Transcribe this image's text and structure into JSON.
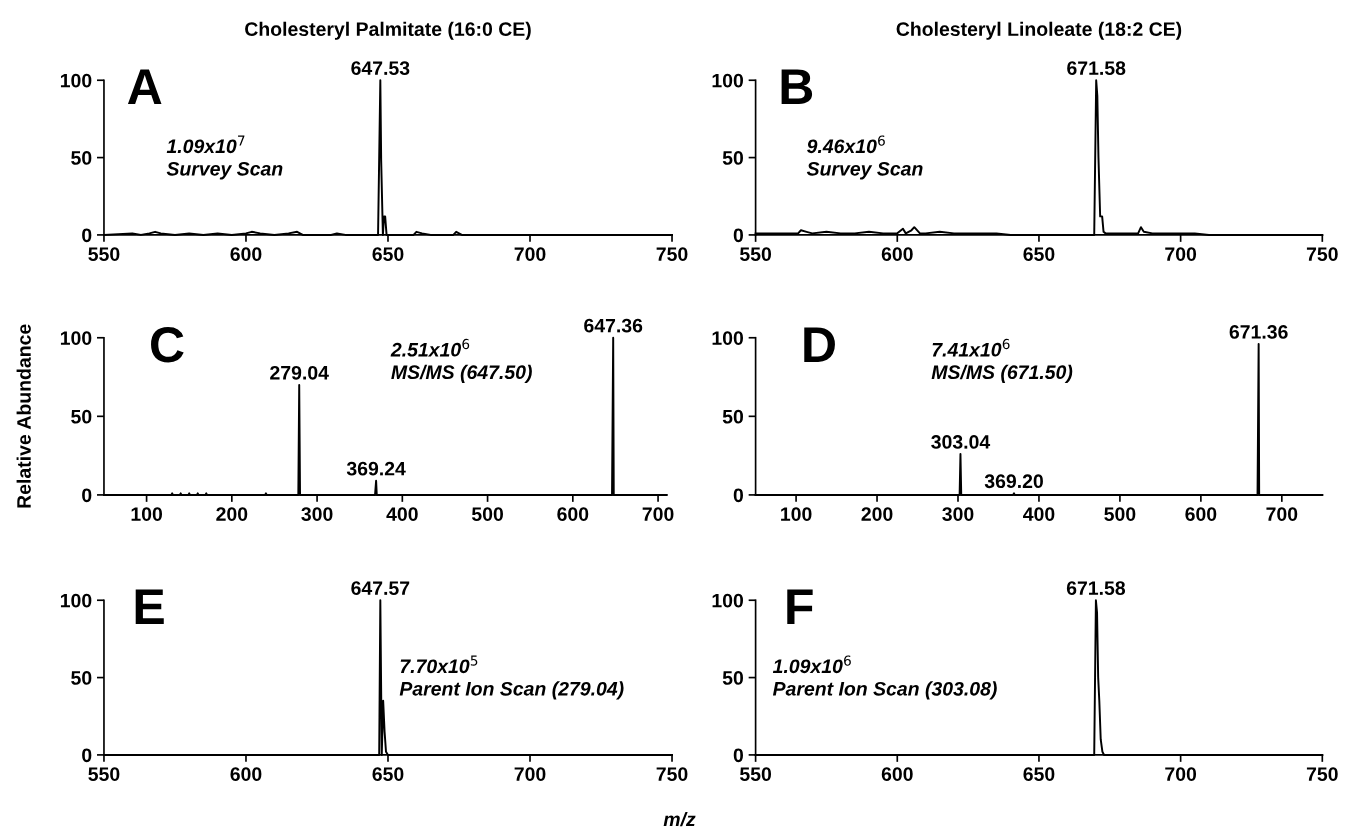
{
  "chart_data": [
    {
      "type": "line",
      "title": "Cholesteryl Palmitate (16:0 CE)",
      "xlim": [
        550,
        750
      ],
      "xticks": [
        550,
        600,
        650,
        700,
        750
      ],
      "ylim": [
        0,
        100
      ],
      "yticks": [
        0,
        50,
        100
      ],
      "legend": false,
      "grid": false,
      "marker": "none",
      "series": [
        {
          "color": "#000000",
          "x": [
            550,
            560,
            563,
            566,
            568,
            570,
            575,
            580,
            585,
            590,
            595,
            600,
            602,
            605,
            610,
            615,
            618,
            620,
            630,
            632,
            635,
            640,
            645,
            646.5,
            647.3,
            647.6,
            648.2,
            648.6,
            649.0,
            649.5,
            650.2,
            651,
            655,
            659,
            660,
            662,
            665,
            670,
            673,
            674,
            676,
            680,
            700,
            750
          ],
          "values": [
            0,
            1,
            0,
            1,
            2,
            1,
            0,
            1,
            0,
            1,
            0,
            1,
            2,
            1,
            0,
            1,
            2,
            0,
            0,
            1,
            0,
            0,
            0,
            0,
            100,
            48,
            0,
            12,
            12,
            0,
            0,
            0,
            0,
            0,
            2,
            1,
            0,
            0,
            0,
            2,
            0,
            0,
            0,
            0
          ]
        }
      ],
      "annotations": [
        "A",
        "1.09x10$^{7}$\nSurvey Scan",
        {
          "text": "647.53",
          "x": 647.3,
          "y": 100
        }
      ]
    },
    {
      "type": "line",
      "title": "Cholesteryl Linoleate (18:2 CE)",
      "xlim": [
        550,
        750
      ],
      "xticks": [
        550,
        600,
        650,
        700,
        750
      ],
      "ylim": [
        0,
        100
      ],
      "yticks": [
        0,
        50,
        100
      ],
      "legend": false,
      "grid": false,
      "marker": "none",
      "series": [
        {
          "color": "#000000",
          "x": [
            550,
            555,
            560,
            565,
            566,
            568,
            570,
            575,
            580,
            585,
            590,
            595,
            600,
            602,
            603,
            605,
            606,
            608,
            610,
            615,
            620,
            625,
            630,
            635,
            640,
            650,
            660,
            665,
            668,
            669.5,
            670.2,
            670.6,
            671.0,
            671.6,
            672.3,
            672.8,
            673.5,
            675,
            680,
            685,
            686,
            687,
            690,
            700,
            705,
            710,
            750
          ],
          "values": [
            1,
            1,
            1,
            1,
            3,
            2,
            1,
            2,
            1,
            1,
            2,
            1,
            1,
            4,
            1,
            3,
            5,
            1,
            1,
            2,
            1,
            1,
            1,
            1,
            0,
            0,
            0,
            0,
            0,
            0,
            100,
            90,
            50,
            12,
            12,
            2,
            1,
            1,
            1,
            1,
            5,
            2,
            1,
            1,
            1,
            0,
            0
          ]
        }
      ],
      "annotations": [
        "B",
        "9.46x10$^{6}$\nSurvey Scan",
        {
          "text": "671.58",
          "x": 670.2,
          "y": 100
        }
      ]
    },
    {
      "type": "line",
      "ylabel": "Relative Abundance",
      "xlim": [
        50,
        710
      ],
      "xticks": [
        100,
        200,
        300,
        400,
        500,
        600,
        700
      ],
      "ylim": [
        0,
        100
      ],
      "yticks": [
        0,
        50,
        100
      ],
      "legend": false,
      "grid": false,
      "marker": "none",
      "series": [
        {
          "color": "#000000",
          "x": [
            50,
            129,
            130,
            131,
            139,
            140,
            141,
            149,
            150,
            151,
            159,
            160,
            161,
            169,
            170,
            171,
            239,
            240,
            241,
            278,
            279.04,
            280,
            368,
            369.24,
            370,
            646,
            647.36,
            648,
            710
          ],
          "values": [
            0,
            0,
            1,
            0,
            0,
            1,
            0,
            0,
            1,
            0,
            0,
            1,
            0,
            0,
            1,
            0,
            0,
            1,
            0,
            0,
            70,
            0,
            0,
            9,
            0,
            0,
            100,
            0,
            0
          ]
        }
      ],
      "annotations": [
        "C",
        "2.51x10$^{6}$\nMS/MS (647.50)",
        {
          "text": "279.04",
          "x": 279.04,
          "y": 70
        },
        {
          "text": "369.24",
          "x": 369.24,
          "y": 9
        },
        {
          "text": "647.36",
          "x": 647.36,
          "y": 100
        }
      ]
    },
    {
      "type": "line",
      "xlim": [
        50,
        750
      ],
      "xticks": [
        100,
        200,
        300,
        400,
        500,
        600,
        700
      ],
      "ylim": [
        0,
        100
      ],
      "yticks": [
        0,
        50,
        100
      ],
      "legend": false,
      "grid": false,
      "marker": "none",
      "series": [
        {
          "color": "#000000",
          "x": [
            50,
            302,
            303.04,
            304,
            368,
            369.2,
            370,
            670,
            671.36,
            672,
            750
          ],
          "values": [
            0,
            0,
            26,
            0,
            0,
            1,
            0,
            0,
            96,
            0,
            0
          ]
        }
      ],
      "annotations": [
        "D",
        "7.41x10$^{6}$\nMS/MS (671.50)",
        {
          "text": "303.04",
          "x": 303.04,
          "y": 26
        },
        {
          "text": "369.20",
          "x": 369.2,
          "y": 1
        },
        {
          "text": "671.36",
          "x": 671.36,
          "y": 96
        }
      ]
    },
    {
      "type": "line",
      "xlabel": "m/z",
      "xlim": [
        550,
        750
      ],
      "xticks": [
        550,
        600,
        650,
        700,
        750
      ],
      "ylim": [
        0,
        100
      ],
      "yticks": [
        0,
        50,
        100
      ],
      "legend": false,
      "grid": false,
      "marker": "none",
      "series": [
        {
          "color": "#000000",
          "x": [
            550,
            646,
            646.9,
            647.3,
            647.8,
            648.3,
            648.8,
            649.3,
            650,
            750
          ],
          "values": [
            0,
            0,
            0,
            100,
            0,
            35,
            15,
            2,
            0,
            0
          ]
        }
      ],
      "annotations": [
        "E",
        "7.70x10$^{5}$\nParent Ion Scan (279.04)",
        {
          "text": "647.57",
          "x": 647.3,
          "y": 100
        }
      ]
    },
    {
      "type": "line",
      "xlim": [
        550,
        750
      ],
      "xticks": [
        550,
        600,
        650,
        700,
        750
      ],
      "ylim": [
        0,
        100
      ],
      "yticks": [
        0,
        50,
        100
      ],
      "legend": false,
      "grid": false,
      "marker": "none",
      "series": [
        {
          "color": "#000000",
          "x": [
            550,
            669.5,
            670.1,
            670.5,
            670.9,
            671.3,
            671.8,
            672.4,
            673,
            750
          ],
          "values": [
            0,
            0,
            100,
            92,
            50,
            35,
            10,
            2,
            0,
            0
          ]
        }
      ],
      "annotations": [
        "F",
        "1.09x10$^{6}$\nParent Ion Scan (303.08)",
        {
          "text": "671.58",
          "x": 670.1,
          "y": 100
        }
      ]
    }
  ]
}
